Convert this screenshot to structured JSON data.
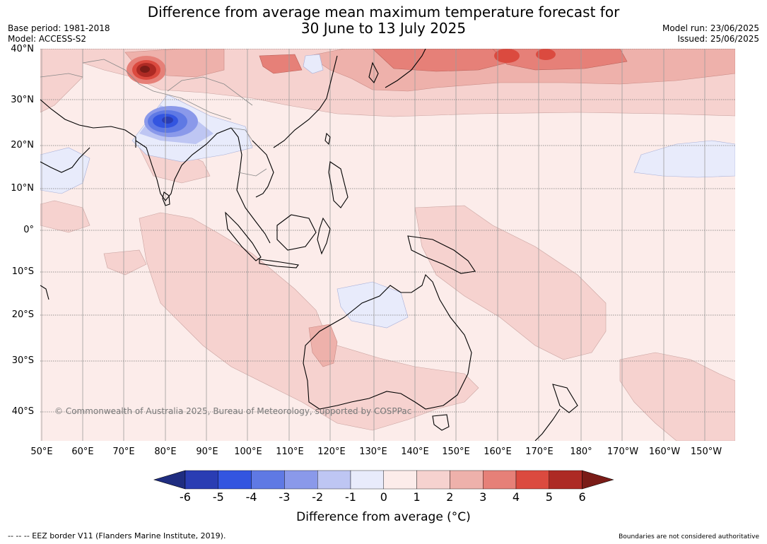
{
  "title": {
    "line1": "Difference from average mean maximum temperature forecast for",
    "line2": "30 June to 13 July 2025"
  },
  "meta_left": {
    "base_period": "Base period: 1981-2018",
    "model": "Model: ACCESS-S2"
  },
  "meta_right": {
    "model_run": "Model run: 23/06/2025",
    "issued": "Issued: 25/06/2025"
  },
  "map": {
    "lat_labels": [
      "40°N",
      "30°N",
      "20°N",
      "10°N",
      "0°",
      "10°S",
      "20°S",
      "30°S",
      "40°S"
    ],
    "lon_labels": [
      "50°E",
      "60°E",
      "70°E",
      "80°E",
      "90°E",
      "100°E",
      "110°E",
      "120°E",
      "130°E",
      "140°E",
      "150°E",
      "160°E",
      "170°E",
      "180°",
      "170°W",
      "160°W",
      "150°W"
    ],
    "copyright": "© Commonwealth of Australia 2025, Bureau of Meteorology, supported by COSPPac"
  },
  "colorbar": {
    "ticks": [
      "-6",
      "-5",
      "-4",
      "-3",
      "-2",
      "-1",
      "0",
      "1",
      "2",
      "3",
      "4",
      "5",
      "6"
    ],
    "colors": [
      "#1f2d80",
      "#2a3db3",
      "#3355e0",
      "#5f79e4",
      "#8a99ea",
      "#bec6f3",
      "#e8ebfb",
      "#fcecea",
      "#f6d2cf",
      "#eeb1ab",
      "#e68078",
      "#db4a3f",
      "#ad2a24",
      "#7a1c17"
    ],
    "label": "Difference from average (°C)"
  },
  "footer": {
    "left": "--  --  -- EEZ border V11 (Flanders Marine Institute, 2019).",
    "right": "Boundaries are not considered authoritative"
  }
}
